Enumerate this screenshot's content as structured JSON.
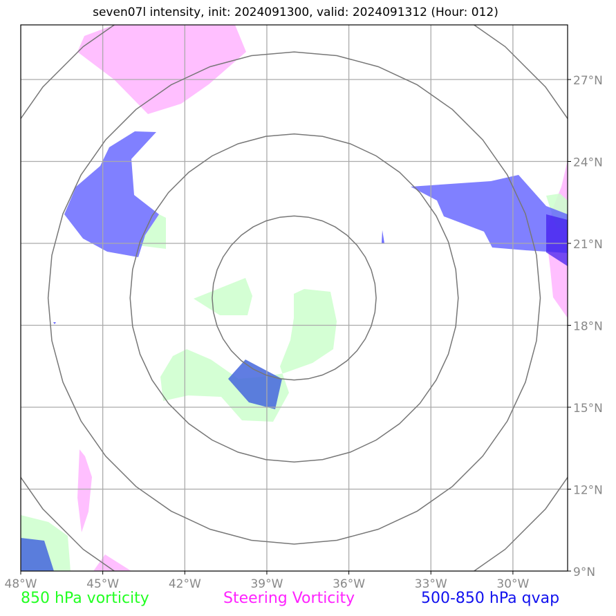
{
  "title": "seven07l intensity, init: 2024091300, valid: 2024091312 (Hour: 012)",
  "map": {
    "lon_range": [
      -48,
      -28
    ],
    "lat_range": [
      9,
      29
    ],
    "lon_ticks": [
      "48°W",
      "45°W",
      "42°W",
      "39°W",
      "36°W",
      "33°W",
      "30°W"
    ],
    "lat_ticks": [
      "27°N",
      "24°N",
      "21°N",
      "18°N",
      "15°N",
      "12°N",
      "9°N"
    ],
    "center": {
      "lon": -38,
      "lat": 19
    },
    "range_rings_deg": [
      3,
      6,
      9,
      12
    ]
  },
  "legend": {
    "item1": {
      "label": "850 hPa vorticity",
      "color": "#22ff22"
    },
    "item2": {
      "label": "Steering Vorticity",
      "color": "#ff22ff"
    },
    "item3": {
      "label": "500-850 hPa qvap",
      "color": "#1111ee"
    }
  },
  "colors": {
    "vort850": "#ccffcc",
    "steering": "#ffaaff",
    "qvap": "#5555ff",
    "ring": "#777777",
    "grid": "#aaaaaa"
  }
}
